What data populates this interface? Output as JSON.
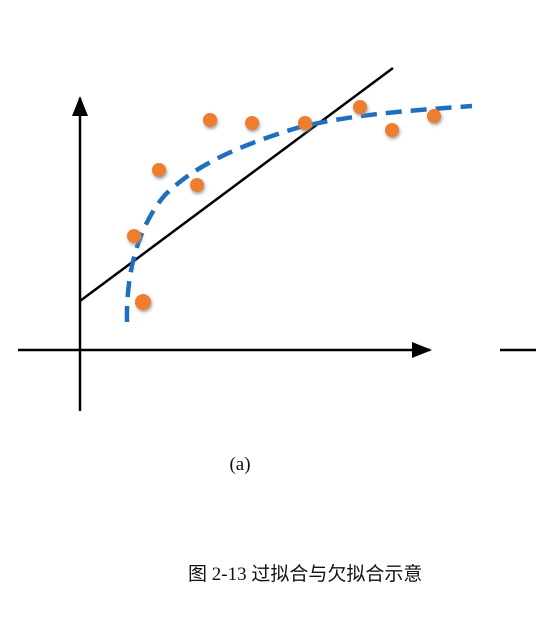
{
  "figure": {
    "panel_label": "(a)",
    "caption": "图 2-13 过拟合与欠拟合示意"
  }
}
